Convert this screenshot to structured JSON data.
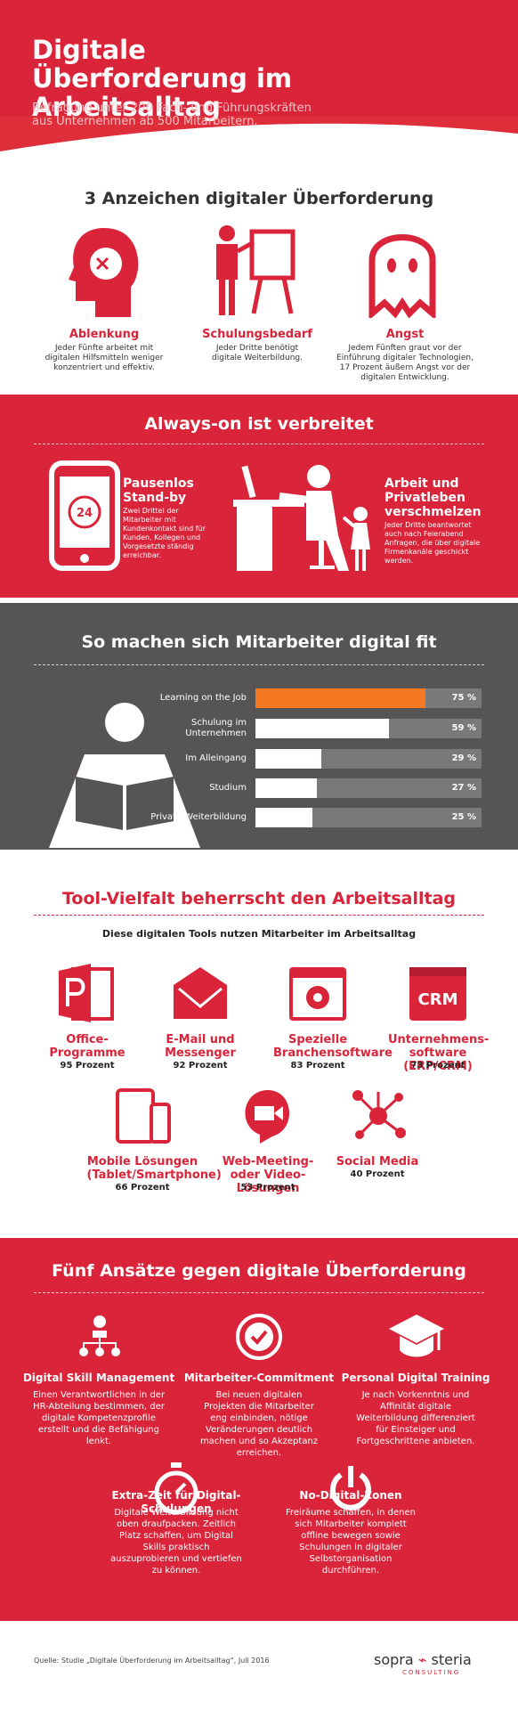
{
  "header": {
    "title": "Digitale Überforderung im Arbeitsalltag",
    "subtitle": "Befragung unter 200 Fach- und Führungskräften aus Unternehmen ab 500 Mitarbeitern."
  },
  "signs": {
    "heading": "3 Anzeichen digitaler Überforderung",
    "items": [
      {
        "title": "Ablenkung",
        "text": "Jeder Fünfte arbeitet mit digitalen Hilfsmitteln weniger konzentriert und effektiv."
      },
      {
        "title": "Schulungsbedarf",
        "text": "Jeder Dritte benötigt digitale Weiterbildung."
      },
      {
        "title": "Angst",
        "text": "Jedem Fünften graut vor der Einführung digitaler Technologien, 17 Prozent äußern Angst vor der digitalen Entwicklung."
      }
    ]
  },
  "always_on": {
    "heading": "Always-on ist verbreitet",
    "phone_label": "24",
    "items": [
      {
        "title": "Pausenlos Stand-by",
        "text": "Zwei Drittel der Mitarbeiter mit Kundenkontakt sind für Kunden, Kollegen und Vorgesetzte ständig erreichbar."
      },
      {
        "title": "Arbeit und Privatleben verschmelzen",
        "text": "Jeder Dritte beantwortet auch nach Feierabend Anfragen, die über digitale Firmenkanäle geschickt werden."
      }
    ]
  },
  "chart_data": {
    "type": "bar",
    "orientation": "horizontal",
    "title": "So machen sich Mitarbeiter digital fit",
    "categories": [
      "Learning on the Job",
      "Schulung im Unternehmen",
      "Im Alleingang",
      "Studium",
      "Private Weiterbildung"
    ],
    "values": [
      75,
      59,
      29,
      27,
      25
    ],
    "value_labels": [
      "75 %",
      "59 %",
      "29 %",
      "27 %",
      "25 %"
    ],
    "colors": [
      "#f47920",
      "#ffffff",
      "#ffffff",
      "#ffffff",
      "#ffffff"
    ],
    "track_color": "#7b7879",
    "xlim": [
      0,
      100
    ]
  },
  "tools": {
    "heading": "Tool-Vielfalt beherrscht den Arbeitsalltag",
    "subheading": "Diese digitalen Tools nutzen Mitarbeiter im Arbeitsalltag",
    "crm_label": "CRM",
    "items": [
      {
        "title": "Office-Programme",
        "share": "95 Prozent"
      },
      {
        "title": "E-Mail und Messenger",
        "share": "92 Prozent"
      },
      {
        "title": "Spezielle Branchensoftware",
        "share": "83 Prozent"
      },
      {
        "title": "Unternehmens-software (ERP/CRM)",
        "share": "73 Prozent"
      },
      {
        "title": "Mobile Lösungen (Tablet/Smartphone)",
        "share": "66 Prozent"
      },
      {
        "title": "Web-Meeting- oder Video-Lösungen",
        "share": "53 Prozent"
      },
      {
        "title": "Social Media",
        "share": "40 Prozent"
      }
    ]
  },
  "approaches": {
    "heading": "Fünf Ansätze gegen digitale Überforderung",
    "items": [
      {
        "title": "Digital Skill Management",
        "text": "Einen Verantwortlichen in der HR-Abteilung bestimmen, der digitale Kompetenzprofile erstellt und die Befähigung lenkt."
      },
      {
        "title": "Mitarbeiter-Commitment",
        "text": "Bei neuen digitalen Projekten die Mitarbeiter eng einbinden, nötige Veränderungen deutlich machen und so Akzeptanz erreichen."
      },
      {
        "title": "Personal Digital Training",
        "text": "Je nach Vorkenntnis und Affinität digitale Weiterbildung differenziert für Einsteiger und Fortgeschrittene anbieten."
      },
      {
        "title": "Extra-Zeit für Digital-Schulungen",
        "text": "Digitale Weiterbildung nicht oben draufpacken. Zeitlich Platz schaffen, um Digital Skills praktisch auszuprobieren und vertiefen zu können."
      },
      {
        "title": "No-Digital-Zonen",
        "text": "Freiräume schaffen, in denen sich Mitarbeiter komplett offline bewegen sowie Schulungen in digitaler Selbstorganisation durchführen."
      }
    ]
  },
  "footer": {
    "source": "Quelle: Studie „Digitale Überforderung im Arbeitsalltag“, Juli 2016",
    "logo_left": "sopra",
    "logo_right": "steria",
    "logo_sub": "CONSULTING"
  }
}
